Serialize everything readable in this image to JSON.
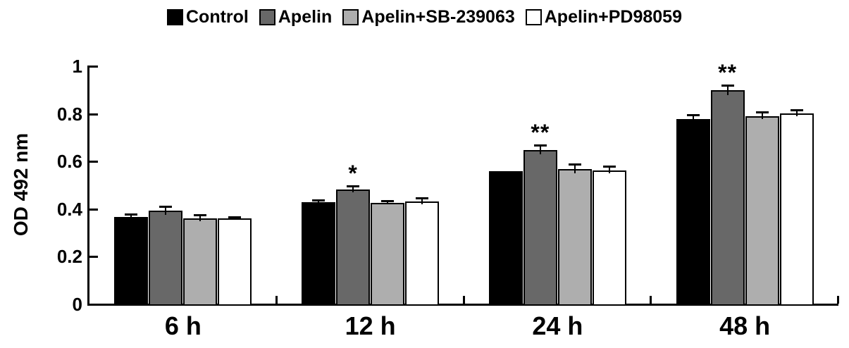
{
  "figure": {
    "background": "#ffffff",
    "axis_color": "#000000"
  },
  "chart_data": {
    "type": "bar",
    "title": "",
    "xlabel": "",
    "ylabel": "OD 492 nm",
    "ylim": [
      0,
      1
    ],
    "yticks": [
      0,
      0.2,
      0.4,
      0.6,
      0.8,
      1
    ],
    "ytick_labels": [
      "0",
      "0.2",
      "0.4",
      "0.6",
      "0.8",
      "1"
    ],
    "categories": [
      "6 h",
      "12 h",
      "24 h",
      "48 h"
    ],
    "grid": false,
    "legend_position": "top",
    "error_bars": true,
    "series": [
      {
        "name": "Control",
        "color": "#000000",
        "values": [
          0.365,
          0.425,
          0.555,
          0.775
        ],
        "errors": [
          0.007,
          0.006,
          0,
          0.015
        ]
      },
      {
        "name": "Apelin",
        "color": "#686868",
        "values": [
          0.39,
          0.48,
          0.645,
          0.895
        ],
        "errors": [
          0.016,
          0.012,
          0.018,
          0.02
        ]
      },
      {
        "name": "Apelin+SB-239063",
        "color": "#aeaeae",
        "values": [
          0.357,
          0.423,
          0.565,
          0.788
        ],
        "errors": [
          0.012,
          0.005,
          0.018,
          0.014
        ]
      },
      {
        "name": "Apelin+PD98059",
        "color": "#ffffff",
        "values": [
          0.357,
          0.428,
          0.56,
          0.8
        ],
        "errors": [
          0.005,
          0.012,
          0.013,
          0.012
        ]
      }
    ],
    "annotations": [
      {
        "category": "12 h",
        "series": "Apelin",
        "text": "*"
      },
      {
        "category": "24 h",
        "series": "Apelin",
        "text": "**"
      },
      {
        "category": "48 h",
        "series": "Apelin",
        "text": "**"
      }
    ]
  }
}
